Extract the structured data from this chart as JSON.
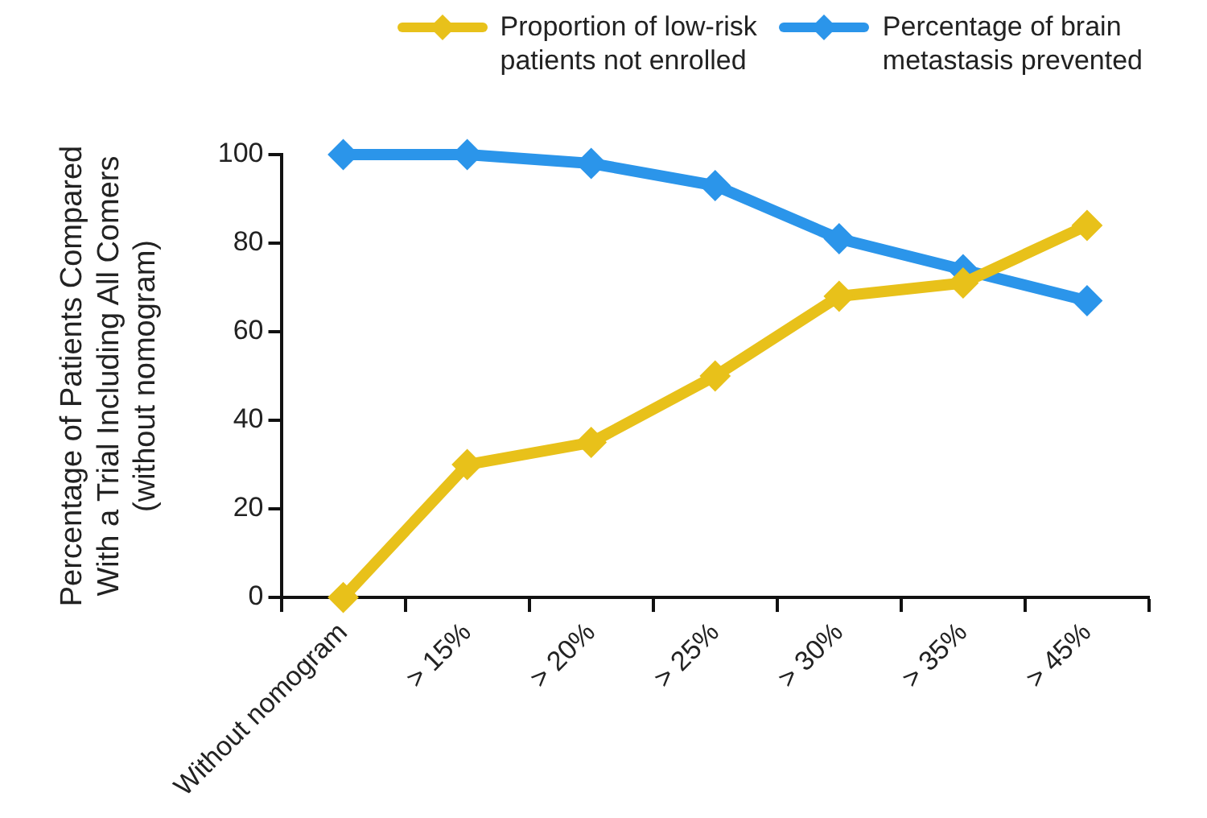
{
  "chart_data": {
    "type": "line",
    "ylabel": "Percentage of Patients Compared\nWith a Trial Including All Comers\n(without nomogram)",
    "categories": [
      "Without nomogram",
      "> 15%",
      "> 20%",
      "> 25%",
      "> 30%",
      "> 35%",
      "> 45%"
    ],
    "series": [
      {
        "name": "Proportion of low-risk\npatients not enrolled",
        "color": "#e8c11a",
        "values": [
          0,
          30,
          35,
          50,
          68,
          71,
          84
        ]
      },
      {
        "name": "Percentage of brain\nmetastasis prevented",
        "color": "#2b95ea",
        "values": [
          100,
          100,
          98,
          93,
          81,
          74,
          67
        ]
      }
    ],
    "ylim": [
      0,
      100
    ],
    "yticks": [
      0,
      20,
      40,
      60,
      80,
      100
    ],
    "grid": false,
    "legend": "top right",
    "marker": "diamond",
    "line_style": "solid"
  }
}
